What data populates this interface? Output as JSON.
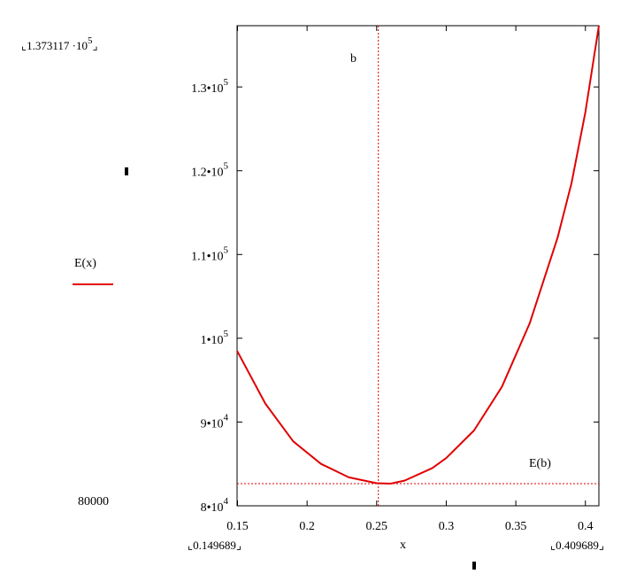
{
  "chart_data": {
    "type": "line",
    "xlabel": "x",
    "ylabel": "E(x)",
    "xlim": [
      0.149689,
      0.409689
    ],
    "ylim": [
      80000,
      137311.7
    ],
    "x_limit_labels": {
      "left": "0.149689",
      "right": "0.409689"
    },
    "y_limit_labels": {
      "top_mantissa": "1.373117",
      "top_exp": "5",
      "bottom": "80000"
    },
    "x_ticks": [
      {
        "value": 0.15,
        "label": "0.15"
      },
      {
        "value": 0.2,
        "label": "0.2"
      },
      {
        "value": 0.25,
        "label": "0.25"
      },
      {
        "value": 0.3,
        "label": "0.3"
      },
      {
        "value": 0.35,
        "label": "0.35"
      },
      {
        "value": 0.4,
        "label": "0.4"
      }
    ],
    "y_ticks": [
      {
        "value": 80000,
        "mantissa": "8",
        "exp": "4"
      },
      {
        "value": 90000,
        "mantissa": "9",
        "exp": "4"
      },
      {
        "value": 100000,
        "mantissa": "1",
        "exp": "5"
      },
      {
        "value": 110000,
        "mantissa": "1.1",
        "exp": "5"
      },
      {
        "value": 120000,
        "mantissa": "1.2",
        "exp": "5"
      },
      {
        "value": 130000,
        "mantissa": "1.3",
        "exp": "5"
      }
    ],
    "series": [
      {
        "name": "E(x)",
        "color": "#e00000",
        "x": [
          0.149689,
          0.17,
          0.19,
          0.21,
          0.23,
          0.25,
          0.26,
          0.27,
          0.29,
          0.3,
          0.32,
          0.34,
          0.36,
          0.38,
          0.39,
          0.4,
          0.409689
        ],
        "y": [
          98500,
          92200,
          87700,
          85000,
          83400,
          82700,
          82650,
          83000,
          84500,
          85700,
          89000,
          94200,
          101800,
          112000,
          118500,
          127000,
          137311.7
        ]
      }
    ],
    "markers": {
      "vertical": {
        "label": "b",
        "x": 0.2512,
        "color": "#e00000"
      },
      "horizontal": {
        "label": "E(b)",
        "y": 82650,
        "color": "#e00000"
      }
    },
    "grid": false
  }
}
